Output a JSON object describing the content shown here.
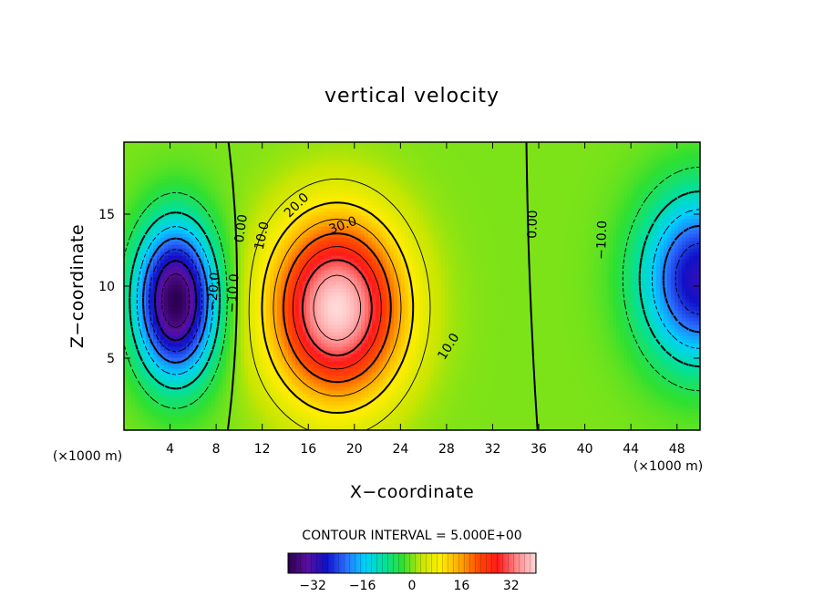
{
  "chart_data": {
    "type": "heatmap",
    "title": "vertical velocity",
    "xlabel": "X−coordinate",
    "ylabel": "Z−coordinate",
    "x_unit": "(×1000 m)",
    "z_unit": "(×1000 m)",
    "xlim": [
      0,
      50
    ],
    "ylim": [
      0,
      20
    ],
    "x_ticks": [
      "4",
      "8",
      "12",
      "16",
      "20",
      "24",
      "28",
      "32",
      "36",
      "40",
      "44",
      "48"
    ],
    "y_ticks": [
      "5",
      "10",
      "15"
    ],
    "contour_interval_label": "CONTOUR INTERVAL = 5.000E+00",
    "colorbar": {
      "range": [
        -40,
        40
      ],
      "ticks": [
        "−32",
        "−16",
        "0",
        "16",
        "32"
      ],
      "colormap": [
        "#2b0050",
        "#5a0fa0",
        "#1010c8",
        "#2a6cff",
        "#00d0ff",
        "#00e0a0",
        "#30e030",
        "#c8e600",
        "#ffee00",
        "#ffaa00",
        "#ff4a00",
        "#ff1a1a",
        "#ff8888",
        "#ffd8d8"
      ]
    },
    "contour_labels": [
      "0.00",
      "10.0",
      "20.0",
      "30.0",
      "10.0",
      "0.00",
      "−10.0",
      "−20.0",
      "−10.0"
    ],
    "features": [
      {
        "name": "updraft",
        "x_center": 18.5,
        "z_center": 8.5,
        "peak": 40
      },
      {
        "name": "downdraft-left",
        "x_center": 4.5,
        "z_center": 9,
        "peak": -40
      },
      {
        "name": "downdraft-right",
        "x_center": 50,
        "z_center": 10.5,
        "peak": -30
      }
    ]
  }
}
